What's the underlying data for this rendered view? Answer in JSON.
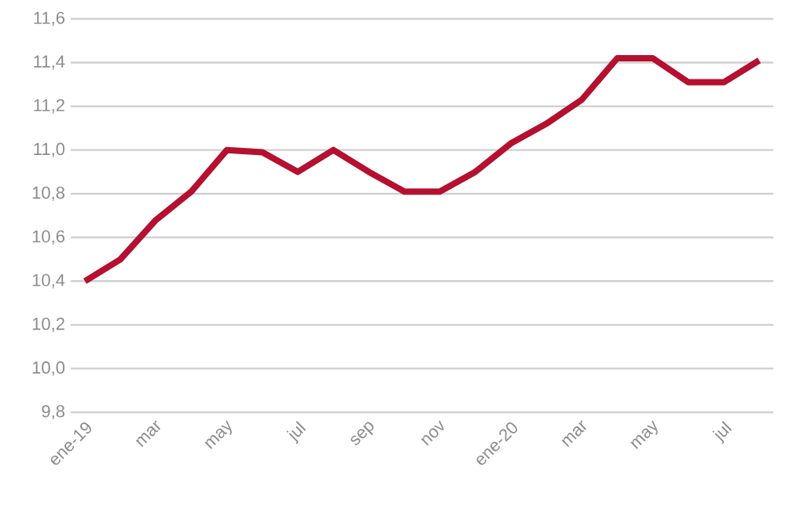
{
  "chart_data": {
    "type": "line",
    "categories": [
      "ene-19",
      null,
      "mar",
      null,
      "may",
      null,
      "jul",
      null,
      "sep",
      null,
      "nov",
      null,
      "ene-20",
      null,
      "mar",
      null,
      "may",
      null,
      "jul",
      null
    ],
    "series": [
      {
        "color": "#b5102f",
        "values": [
          10.4,
          10.5,
          10.68,
          10.81,
          11.0,
          10.99,
          10.9,
          11.0,
          10.9,
          10.81,
          10.81,
          10.9,
          11.03,
          11.12,
          11.23,
          11.42,
          11.42,
          11.31,
          11.31,
          11.41
        ]
      }
    ],
    "ylim": [
      9.8,
      11.6
    ],
    "yticks": [
      {
        "value": 9.8,
        "label": "9,8"
      },
      {
        "value": 10.0,
        "label": "10,0"
      },
      {
        "value": 10.2,
        "label": "10,2"
      },
      {
        "value": 10.4,
        "label": "10,4"
      },
      {
        "value": 10.6,
        "label": "10,6"
      },
      {
        "value": 10.8,
        "label": "10,8"
      },
      {
        "value": 11.0,
        "label": "11,0"
      },
      {
        "value": 11.2,
        "label": "11,2"
      },
      {
        "value": 11.4,
        "label": "11,4"
      },
      {
        "value": 11.6,
        "label": "11,6"
      }
    ],
    "grid": "y",
    "marker": "none",
    "line_style": "solid"
  }
}
